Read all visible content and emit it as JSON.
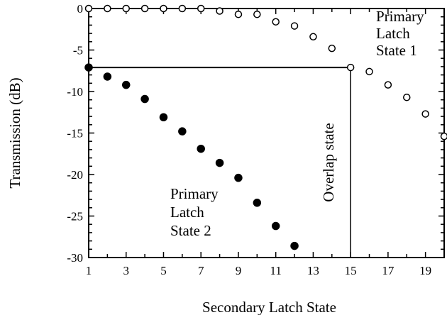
{
  "chart_data": {
    "type": "scatter",
    "xlabel": "Secondary Latch State",
    "ylabel": "Transmission (dB)",
    "xlim": [
      1,
      20
    ],
    "ylim": [
      -30,
      0
    ],
    "x_ticks": [
      1,
      3,
      5,
      7,
      9,
      11,
      13,
      15,
      17,
      19
    ],
    "y_ticks": [
      0,
      -5,
      -10,
      -15,
      -20,
      -25,
      -30
    ],
    "x_tick_labels": [
      "1",
      "3",
      "5",
      "7",
      "9",
      "11",
      "13",
      "15",
      "17",
      "19"
    ],
    "y_tick_labels": [
      "0",
      "-5",
      "-10",
      "-15",
      "-20",
      "-25",
      "-30"
    ],
    "series": [
      {
        "marker": "open-circle",
        "points": [
          {
            "x": 1,
            "y": 0
          },
          {
            "x": 2,
            "y": 0
          },
          {
            "x": 3,
            "y": 0
          },
          {
            "x": 4,
            "y": 0
          },
          {
            "x": 5,
            "y": 0
          },
          {
            "x": 6,
            "y": 0
          },
          {
            "x": 7,
            "y": 0
          },
          {
            "x": 8,
            "y": -0.3
          },
          {
            "x": 9,
            "y": -0.7
          },
          {
            "x": 10,
            "y": -0.7
          },
          {
            "x": 11,
            "y": -1.6
          },
          {
            "x": 12,
            "y": -2.1
          },
          {
            "x": 13,
            "y": -3.4
          },
          {
            "x": 14,
            "y": -4.8
          },
          {
            "x": 15,
            "y": -7.1
          },
          {
            "x": 16,
            "y": -7.6
          },
          {
            "x": 17,
            "y": -9.2
          },
          {
            "x": 18,
            "y": -10.7
          },
          {
            "x": 19,
            "y": -12.7
          },
          {
            "x": 20,
            "y": -15.4
          }
        ]
      },
      {
        "marker": "filled-circle",
        "points": [
          {
            "x": 1,
            "y": -7.1
          },
          {
            "x": 2,
            "y": -8.2
          },
          {
            "x": 3,
            "y": -9.2
          },
          {
            "x": 4,
            "y": -10.9
          },
          {
            "x": 5,
            "y": -13.1
          },
          {
            "x": 6,
            "y": -14.8
          },
          {
            "x": 7,
            "y": -16.9
          },
          {
            "x": 8,
            "y": -18.6
          },
          {
            "x": 9,
            "y": -20.4
          },
          {
            "x": 10,
            "y": -23.4
          },
          {
            "x": 11,
            "y": -26.2
          },
          {
            "x": 12,
            "y": -28.6
          }
        ]
      }
    ],
    "reference_lines": {
      "horizontal": {
        "y": -7.1,
        "x_from": 1,
        "x_to": 15
      },
      "vertical": {
        "x": 15,
        "y_from": -7.1,
        "y_to": -30
      }
    },
    "annotations": [
      {
        "id": "state1",
        "lines": [
          "Primary",
          "Latch",
          "State 1"
        ]
      },
      {
        "id": "state2",
        "lines": [
          "Primary",
          "Latch",
          "State 2"
        ]
      },
      {
        "id": "overlap",
        "lines": [
          "Overlap state"
        ]
      }
    ],
    "grid": false,
    "legend": "none"
  }
}
